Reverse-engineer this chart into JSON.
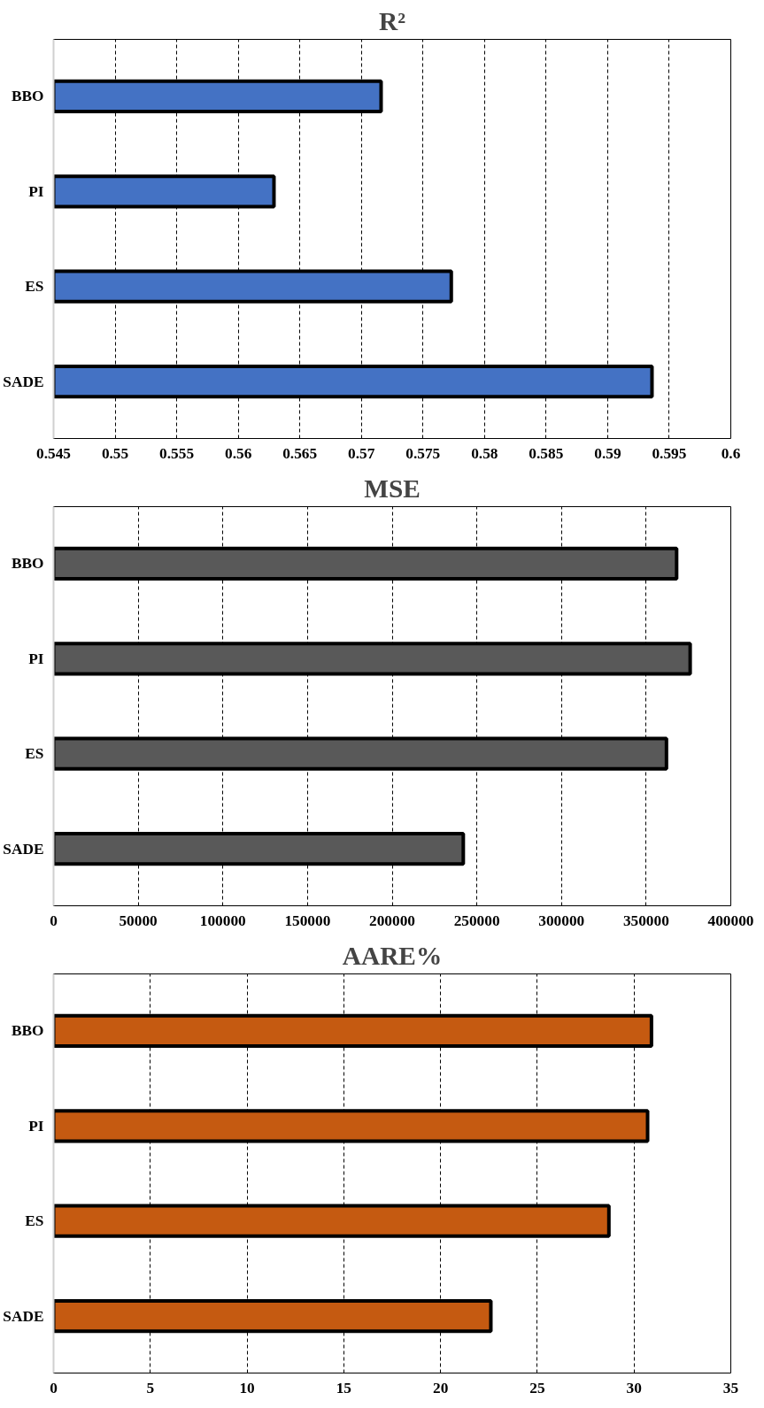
{
  "chart_data": [
    {
      "type": "bar",
      "orientation": "horizontal",
      "title": "R²",
      "categories": [
        "BBO",
        "PI",
        "ES",
        "SADE"
      ],
      "values": [
        0.5716,
        0.5629,
        0.5773,
        0.5936
      ],
      "color": "#4472c4",
      "xlim": [
        0.545,
        0.6
      ],
      "xticks": [
        0.545,
        0.55,
        0.555,
        0.56,
        0.565,
        0.57,
        0.575,
        0.58,
        0.585,
        0.59,
        0.595,
        0.6
      ],
      "grid": "x"
    },
    {
      "type": "bar",
      "orientation": "horizontal",
      "title": "MSE",
      "categories": [
        "BBO",
        "PI",
        "ES",
        "SADE"
      ],
      "values": [
        368000,
        376000,
        362000,
        242000
      ],
      "color": "#595959",
      "xlim": [
        0,
        400000
      ],
      "xticks": [
        0,
        50000,
        100000,
        150000,
        200000,
        250000,
        300000,
        350000,
        400000
      ],
      "grid": "x"
    },
    {
      "type": "bar",
      "orientation": "horizontal",
      "title": "AARE%",
      "categories": [
        "BBO",
        "PI",
        "ES",
        "SADE"
      ],
      "values": [
        30.9,
        30.7,
        28.7,
        22.6
      ],
      "color": "#c55a11",
      "xlim": [
        0,
        35
      ],
      "xticks": [
        0,
        5,
        10,
        15,
        20,
        25,
        30,
        35
      ],
      "grid": "x"
    }
  ]
}
